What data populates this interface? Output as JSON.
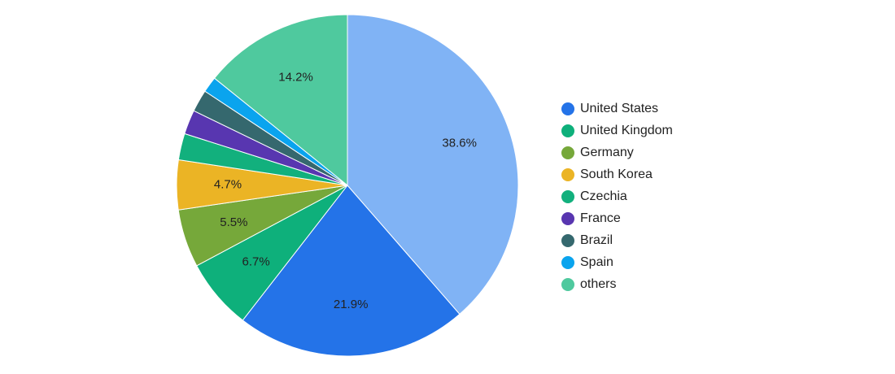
{
  "chart_data": {
    "type": "pie",
    "categories": [
      "United States",
      "United Kingdom",
      "Germany",
      "South Korea",
      "Czechia",
      "France",
      "Brazil",
      "Spain",
      "others"
    ],
    "slices": [
      {
        "name": "others",
        "value": 14.2,
        "label": "14.2%",
        "color": "#4fc99e"
      },
      {
        "name": "United States",
        "value": 38.6,
        "label": "38.6%",
        "color": "#80b3f5"
      },
      {
        "name": "United States",
        "value": 21.9,
        "label": "21.9%",
        "color": "#2473e8"
      },
      {
        "name": "United Kingdom",
        "value": 6.7,
        "label": "6.7%",
        "color": "#0eb07b"
      },
      {
        "name": "Germany",
        "value": 5.5,
        "label": "5.5%",
        "color": "#76a83a"
      },
      {
        "name": "South Korea",
        "value": 4.7,
        "label": "4.7%",
        "color": "#ebb425"
      },
      {
        "name": "Czechia",
        "value": 2.5,
        "label": "",
        "color": "#12b07d"
      },
      {
        "name": "France",
        "value": 2.3,
        "label": "",
        "color": "#5836b0"
      },
      {
        "name": "Brazil",
        "value": 2.1,
        "label": "",
        "color": "#35686e"
      },
      {
        "name": "Spain",
        "value": 1.5,
        "label": "",
        "color": "#0aa4ee"
      }
    ],
    "legend": {
      "placement": "right",
      "items": [
        {
          "label": "United States",
          "color": "#2473e8"
        },
        {
          "label": "United Kingdom",
          "color": "#0eb07b"
        },
        {
          "label": "Germany",
          "color": "#76a83a"
        },
        {
          "label": "South Korea",
          "color": "#ebb425"
        },
        {
          "label": "Czechia",
          "color": "#12b07d"
        },
        {
          "label": "France",
          "color": "#5836b0"
        },
        {
          "label": "Brazil",
          "color": "#35686e"
        },
        {
          "label": "Spain",
          "color": "#0aa4ee"
        },
        {
          "label": "others",
          "color": "#4fc99e"
        }
      ]
    }
  }
}
